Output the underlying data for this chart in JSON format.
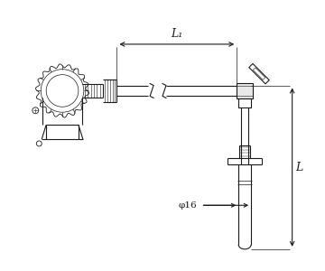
{
  "bg_color": "#ffffff",
  "line_color": "#1a1a1a",
  "lw": 0.8,
  "lw_thin": 0.5,
  "lw_thick": 1.0,
  "L1_label": "L₁",
  "L_label": "L",
  "phi_label": "φ16",
  "figsize": [
    3.6,
    3.0
  ],
  "dpi": 100
}
